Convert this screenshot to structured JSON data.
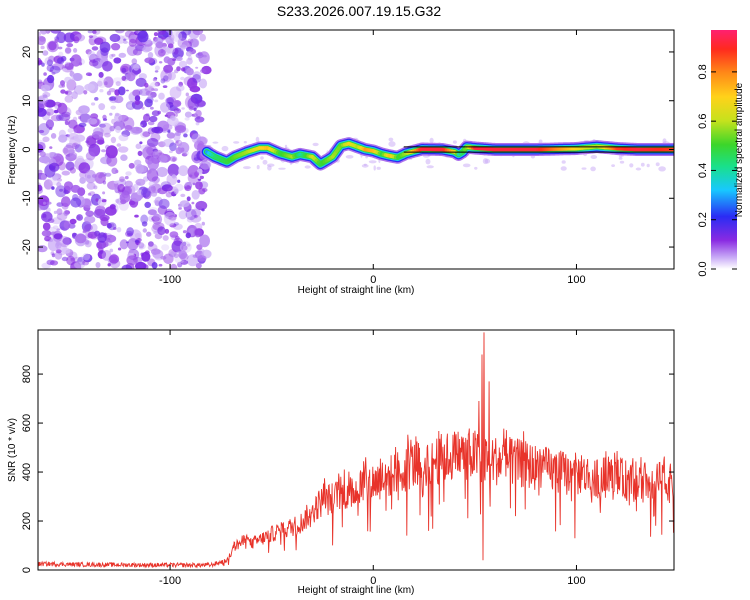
{
  "chart_data": [
    {
      "type": "heatmap",
      "title": "S233.2026.007.19.15.G32",
      "xlabel": "Height of straight line (km)",
      "ylabel": "Frequency (Hz)",
      "xlim": [
        -165,
        148
      ],
      "ylim": [
        -24.5,
        24.5
      ],
      "x_ticks": [
        -100,
        0,
        100
      ],
      "y_ticks": [
        -20,
        -10,
        0,
        10,
        20
      ],
      "colorbar": {
        "label": "Normalized spectral amplitude",
        "range": [
          0,
          0.97
        ],
        "ticks": [
          0.0,
          0.2,
          0.4,
          0.6,
          0.8
        ]
      },
      "noise_region_x": [
        -165,
        -82
      ],
      "signal_start_x": -82,
      "ridge": {
        "x": [
          -82,
          -78,
          -72,
          -68,
          -62,
          -56,
          -52,
          -46,
          -40,
          -36,
          -30,
          -26,
          -20,
          -16,
          -12,
          -8,
          -4,
          0,
          4,
          8,
          12,
          16,
          24,
          34,
          40,
          42,
          44,
          46,
          50,
          60,
          80,
          100,
          110,
          120,
          130,
          148
        ],
        "freq": [
          -0.5,
          -1.5,
          -2.5,
          -1.5,
          -0.5,
          0.3,
          0.3,
          -0.8,
          -1.5,
          -1.0,
          -1.5,
          -3.0,
          -1.5,
          0.8,
          1.2,
          0.6,
          0.0,
          -0.3,
          -0.9,
          -1.3,
          -1.6,
          -0.8,
          0.1,
          0.0,
          -0.5,
          -1.0,
          -0.5,
          0.5,
          0.3,
          0.0,
          0.0,
          0.2,
          0.6,
          0.2,
          0.0,
          0.0
        ],
        "amplitude": [
          0.3,
          0.45,
          0.5,
          0.55,
          0.6,
          0.7,
          0.75,
          0.5,
          0.6,
          0.4,
          0.65,
          0.5,
          0.6,
          0.55,
          0.7,
          0.6,
          0.8,
          0.75,
          0.5,
          0.75,
          0.5,
          0.6,
          0.95,
          0.95,
          0.7,
          0.4,
          0.5,
          0.6,
          0.95,
          0.95,
          0.95,
          0.7,
          0.6,
          0.9,
          0.95,
          0.9
        ]
      }
    },
    {
      "type": "line",
      "xlabel": "Height of straight line (km)",
      "ylabel": "SNR (10 * v/v)",
      "xlim": [
        -165,
        148
      ],
      "ylim": [
        0,
        980
      ],
      "x_ticks": [
        -100,
        0,
        100
      ],
      "y_ticks": [
        0,
        200,
        400,
        600,
        800
      ],
      "series": [
        {
          "name": "SNR",
          "color": "#e8332a",
          "envelope_x": [
            -165,
            -140,
            -100,
            -80,
            -72,
            -68,
            -64,
            -60,
            -55,
            -50,
            -45,
            -40,
            -35,
            -30,
            -25,
            -20,
            -15,
            -10,
            -5,
            0,
            5,
            10,
            15,
            20,
            25,
            30,
            35,
            40,
            45,
            50,
            55,
            60,
            70,
            80,
            90,
            100,
            110,
            120,
            130,
            140,
            148
          ],
          "envelope_y": [
            25,
            22,
            20,
            20,
            40,
            100,
            120,
            110,
            130,
            150,
            170,
            180,
            200,
            250,
            290,
            300,
            320,
            330,
            360,
            370,
            380,
            400,
            420,
            440,
            450,
            460,
            470,
            480,
            490,
            480,
            470,
            460,
            450,
            430,
            410,
            400,
            390,
            380,
            370,
            370,
            360
          ],
          "spikes": [
            {
              "x": 54.5,
              "y": 970
            },
            {
              "x": 53.5,
              "y": 880
            },
            {
              "x": 52.0,
              "y": 690
            },
            {
              "x": 54.0,
              "y": 40
            },
            {
              "x": 57.0,
              "y": 770
            }
          ]
        }
      ]
    }
  ]
}
